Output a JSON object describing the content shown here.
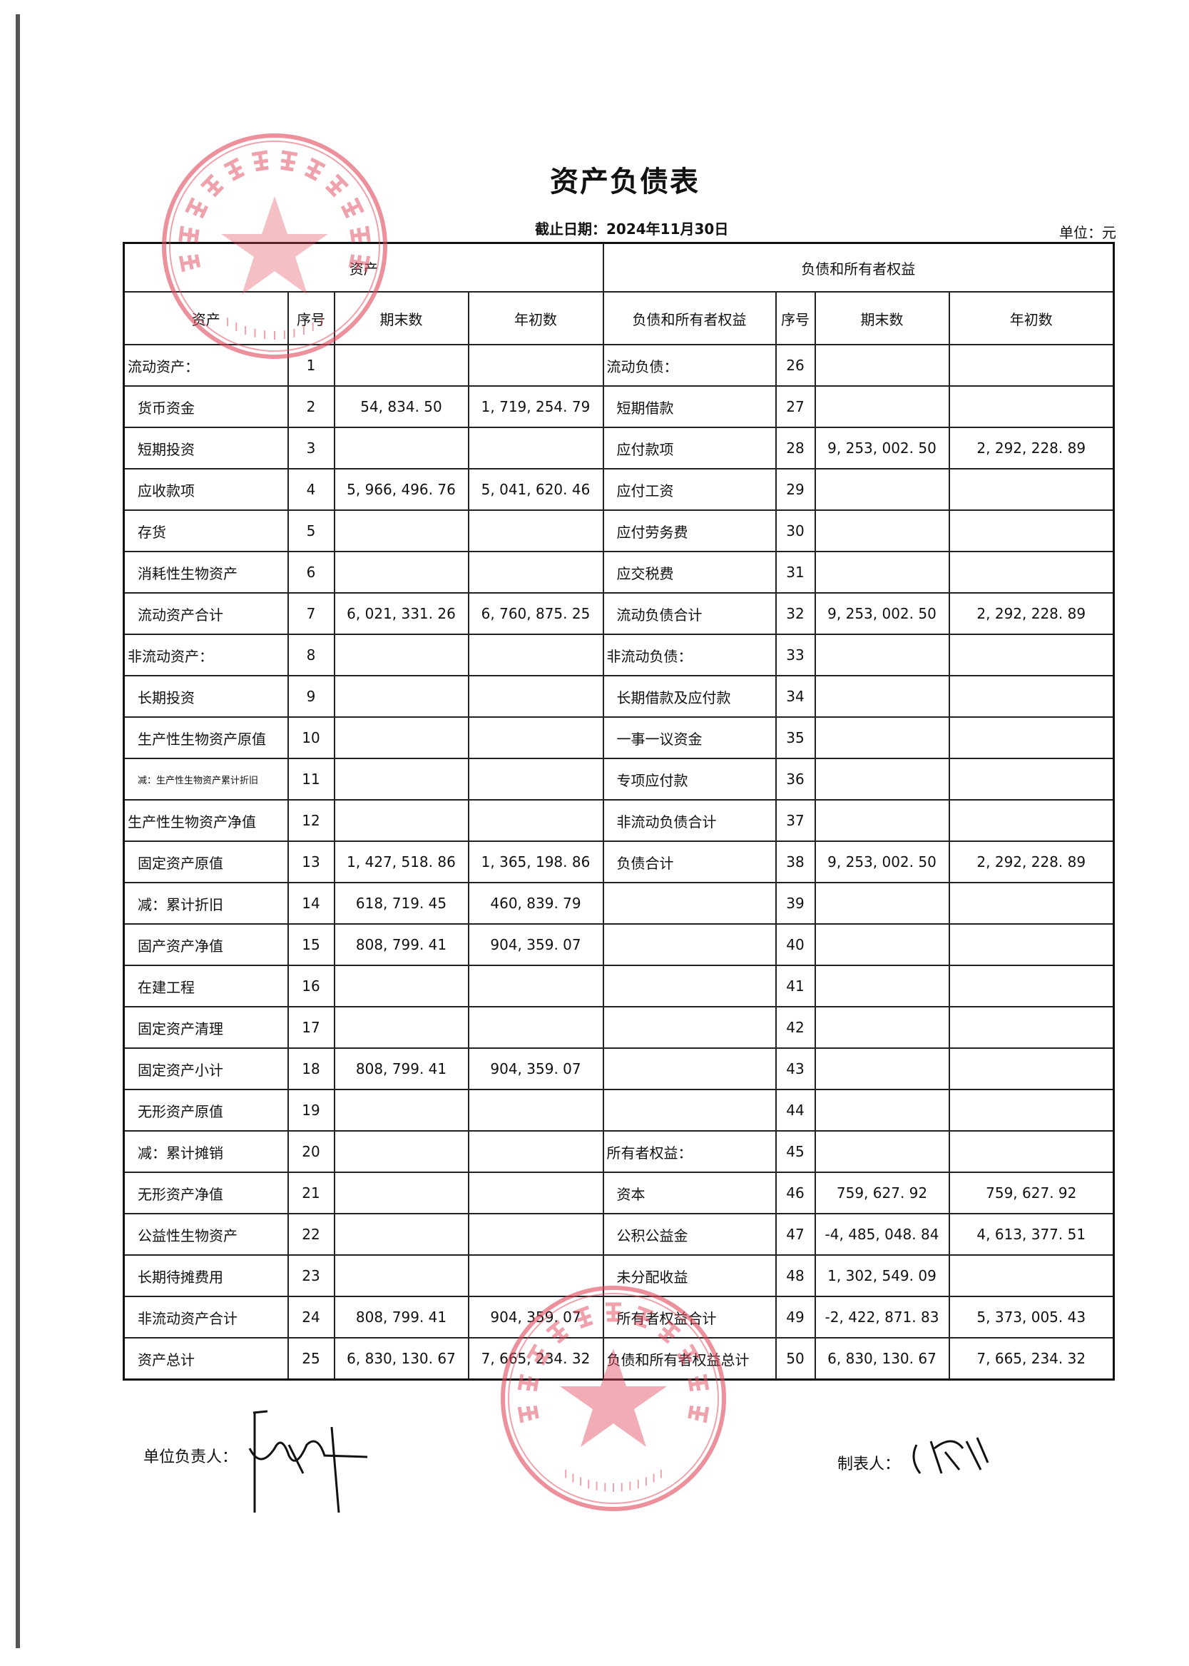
{
  "title": "资产负债表",
  "date_label": "截止日期：2024年11月30日",
  "unit_label": "单位：元",
  "header": {
    "assets_group": "资产",
    "liab_group": "负债和所有者权益",
    "cols_left": [
      "资产",
      "序号",
      "期末数",
      "年初数"
    ],
    "cols_right": [
      "负债和所有者权益",
      "序号",
      "期末数",
      "年初数"
    ]
  },
  "rows": [
    {
      "l": "流动资产：",
      "ls": "1",
      "le": "",
      "lb": "",
      "r": "流动负债：",
      "rs": "26",
      "re": "",
      "rb": ""
    },
    {
      "l": "货币资金",
      "ls": "2",
      "le": "54, 834. 50",
      "lb": "1, 719, 254. 79",
      "r": "短期借款",
      "rs": "27",
      "re": "",
      "rb": ""
    },
    {
      "l": "短期投资",
      "ls": "3",
      "le": "",
      "lb": "",
      "r": "应付款项",
      "rs": "28",
      "re": "9, 253, 002. 50",
      "rb": "2, 292, 228. 89"
    },
    {
      "l": "应收款项",
      "ls": "4",
      "le": "5, 966, 496. 76",
      "lb": "5, 041, 620. 46",
      "r": "应付工资",
      "rs": "29",
      "re": "",
      "rb": ""
    },
    {
      "l": "存货",
      "ls": "5",
      "le": "",
      "lb": "",
      "r": "应付劳务费",
      "rs": "30",
      "re": "",
      "rb": ""
    },
    {
      "l": "消耗性生物资产",
      "ls": "6",
      "le": "",
      "lb": "",
      "r": "应交税费",
      "rs": "31",
      "re": "",
      "rb": ""
    },
    {
      "l": "流动资产合计",
      "ls": "7",
      "le": "6, 021, 331. 26",
      "lb": "6, 760, 875. 25",
      "r": "流动负债合计",
      "rs": "32",
      "re": "9, 253, 002. 50",
      "rb": "2, 292, 228. 89"
    },
    {
      "l": "非流动资产：",
      "ls": "8",
      "le": "",
      "lb": "",
      "r": "非流动负债：",
      "rs": "33",
      "re": "",
      "rb": ""
    },
    {
      "l": "长期投资",
      "ls": "9",
      "le": "",
      "lb": "",
      "r": "长期借款及应付款",
      "rs": "34",
      "re": "",
      "rb": ""
    },
    {
      "l": "生产性生物资产原值",
      "ls": "10",
      "le": "",
      "lb": "",
      "r": "一事一议资金",
      "rs": "35",
      "re": "",
      "rb": ""
    },
    {
      "l": "减：生产性生物资产累计折旧",
      "ls": "11",
      "le": "",
      "lb": "",
      "r": "专项应付款",
      "rs": "36",
      "re": "",
      "rb": ""
    },
    {
      "l": "生产性生物资产净值",
      "ls": "12",
      "le": "",
      "lb": "",
      "r": "非流动负债合计",
      "rs": "37",
      "re": "",
      "rb": ""
    },
    {
      "l": "固定资产原值",
      "ls": "13",
      "le": "1, 427, 518. 86",
      "lb": "1, 365, 198. 86",
      "r": "负债合计",
      "rs": "38",
      "re": "9, 253, 002. 50",
      "rb": "2, 292, 228. 89"
    },
    {
      "l": "减：累计折旧",
      "ls": "14",
      "le": "618, 719. 45",
      "lb": "460, 839. 79",
      "r": "",
      "rs": "39",
      "re": "",
      "rb": ""
    },
    {
      "l": "固产资产净值",
      "ls": "15",
      "le": "808, 799. 41",
      "lb": "904, 359. 07",
      "r": "",
      "rs": "40",
      "re": "",
      "rb": ""
    },
    {
      "l": "在建工程",
      "ls": "16",
      "le": "",
      "lb": "",
      "r": "",
      "rs": "41",
      "re": "",
      "rb": ""
    },
    {
      "l": "固定资产清理",
      "ls": "17",
      "le": "",
      "lb": "",
      "r": "",
      "rs": "42",
      "re": "",
      "rb": ""
    },
    {
      "l": "固定资产小计",
      "ls": "18",
      "le": "808, 799. 41",
      "lb": "904, 359. 07",
      "r": "",
      "rs": "43",
      "re": "",
      "rb": ""
    },
    {
      "l": "无形资产原值",
      "ls": "19",
      "le": "",
      "lb": "",
      "r": "",
      "rs": "44",
      "re": "",
      "rb": ""
    },
    {
      "l": "减：累计摊销",
      "ls": "20",
      "le": "",
      "lb": "",
      "r": "所有者权益：",
      "rs": "45",
      "re": "",
      "rb": ""
    },
    {
      "l": "无形资产净值",
      "ls": "21",
      "le": "",
      "lb": "",
      "r": "资本",
      "rs": "46",
      "re": "759, 627. 92",
      "rb": "759, 627. 92"
    },
    {
      "l": "公益性生物资产",
      "ls": "22",
      "le": "",
      "lb": "",
      "r": "公积公益金",
      "rs": "47",
      "re": "-4, 485, 048. 84",
      "rb": "4, 613, 377. 51"
    },
    {
      "l": "长期待摊费用",
      "ls": "23",
      "le": "",
      "lb": "",
      "r": "未分配收益",
      "rs": "48",
      "re": "1, 302, 549. 09",
      "rb": ""
    },
    {
      "l": "非流动资产合计",
      "ls": "24",
      "le": "808, 799. 41",
      "lb": "904, 359. 07",
      "r": "所有者权益合计",
      "rs": "49",
      "re": "-2, 422, 871. 83",
      "rb": "5, 373, 005. 43"
    },
    {
      "l": "资产总计",
      "ls": "25",
      "le": "6, 830, 130. 67",
      "lb": "7, 665, 234. 32",
      "r": "负债和所有者权益总计",
      "rs": "50",
      "re": "6, 830, 130. 67",
      "rb": "7, 665, 234. 32"
    }
  ],
  "footer": {
    "responsible_label": "单位负责人：",
    "preparer_label": "制表人："
  },
  "stamps": [
    {
      "text": "巴城镇马料江村村民委员会",
      "code": "32058309416",
      "color": "#e0485a"
    },
    {
      "text": "马料江村村务监督委员会",
      "code": "3205830429337",
      "color": "#e0485a"
    }
  ]
}
